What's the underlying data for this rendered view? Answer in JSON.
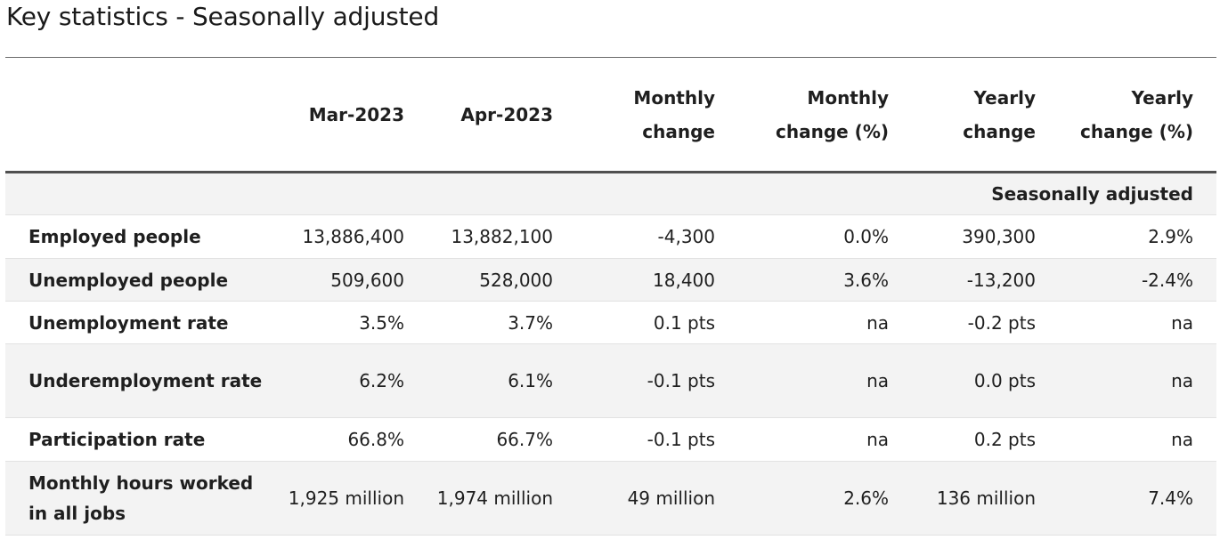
{
  "title": "Key statistics - Seasonally adjusted",
  "table": {
    "headers": [
      "",
      "Mar-2023",
      "Apr-2023",
      "Monthly change",
      "Monthly change (%)",
      "Yearly change",
      "Yearly change (%)"
    ],
    "section_label": "Seasonally adjusted",
    "rows": [
      {
        "label": "Employed people",
        "cells": [
          "13,886,400",
          "13,882,100",
          "-4,300",
          "0.0%",
          "390,300",
          "2.9%"
        ]
      },
      {
        "label": "Unemployed people",
        "cells": [
          "509,600",
          "528,000",
          "18,400",
          "3.6%",
          "-13,200",
          "-2.4%"
        ]
      },
      {
        "label": "Unemployment rate",
        "cells": [
          "3.5%",
          "3.7%",
          "0.1 pts",
          "na",
          "-0.2 pts",
          "na"
        ]
      },
      {
        "label": "Underemployment rate",
        "cells": [
          "6.2%",
          "6.1%",
          "-0.1 pts",
          "na",
          "0.0 pts",
          "na"
        ]
      },
      {
        "label": "Participation rate",
        "cells": [
          "66.8%",
          "66.7%",
          "-0.1 pts",
          "na",
          "0.2 pts",
          "na"
        ]
      },
      {
        "label": "Monthly hours worked in all jobs",
        "cells": [
          "1,925 million",
          "1,974 million",
          "49 million",
          "2.6%",
          "136 million",
          "7.4%"
        ]
      }
    ]
  }
}
